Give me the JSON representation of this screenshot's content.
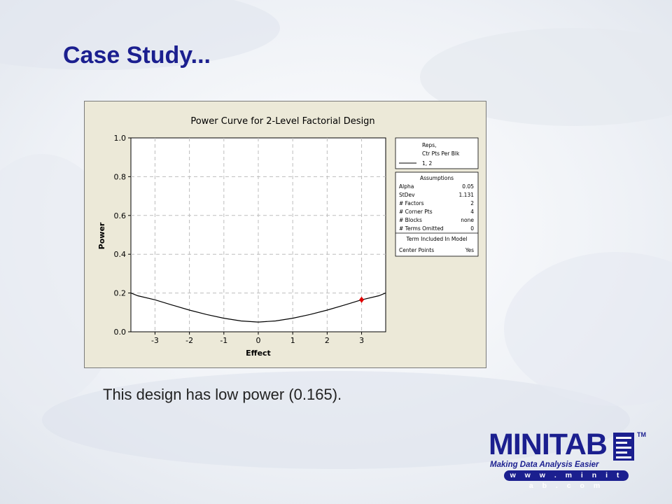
{
  "slide": {
    "title": "Case Study...",
    "caption": "This design has low power (0.165)."
  },
  "logo": {
    "word": "MINITAB",
    "tm": "TM",
    "tagline": "Making Data Analysis Easier",
    "url": "w w w . m i n i t a b . c o m",
    "color": "#1b1f8f"
  },
  "chart_data": {
    "type": "line",
    "title": "Power Curve for 2-Level Factorial Design",
    "xlabel": "Effect",
    "ylabel": "Power",
    "xlim": [
      -3.7,
      3.7
    ],
    "ylim": [
      0,
      1
    ],
    "xticks": [
      -3,
      -2,
      -1,
      0,
      1,
      2,
      3
    ],
    "yticks": [
      0.0,
      0.2,
      0.4,
      0.6,
      0.8,
      1.0
    ],
    "ytick_labels": [
      "0.0",
      "0.2",
      "0.4",
      "0.6",
      "0.8",
      "1.0"
    ],
    "grid": true,
    "series": [
      {
        "name": "1, 2",
        "color": "#000000",
        "x": [
          -3.7,
          -3.5,
          -3.0,
          -2.5,
          -2.0,
          -1.5,
          -1.0,
          -0.5,
          0.0,
          0.5,
          1.0,
          1.5,
          2.0,
          2.5,
          3.0,
          3.5,
          3.7
        ],
        "y": [
          0.2,
          0.186,
          0.165,
          0.138,
          0.112,
          0.089,
          0.07,
          0.056,
          0.05,
          0.056,
          0.07,
          0.089,
          0.112,
          0.138,
          0.165,
          0.186,
          0.2
        ]
      }
    ],
    "highlight_point": {
      "x": 3.0,
      "y": 0.165,
      "color": "#e00000"
    },
    "legend": {
      "header1": "Reps,",
      "header2": "Ctr Pts Per Blk",
      "entry": "1, 2",
      "placement": "right"
    },
    "assumptions": {
      "title": "Assumptions",
      "rows": [
        {
          "label": "Alpha",
          "value": "0.05"
        },
        {
          "label": "StDev",
          "value": "1.131"
        },
        {
          "label": "# Factors",
          "value": "2"
        },
        {
          "label": "# Corner Pts",
          "value": "4"
        },
        {
          "label": "# Blocks",
          "value": "none"
        },
        {
          "label": "# Terms Omitted",
          "value": "0"
        }
      ],
      "term_title": "Term Included In Model",
      "term_label": "Center Points",
      "term_value": "Yes"
    }
  }
}
